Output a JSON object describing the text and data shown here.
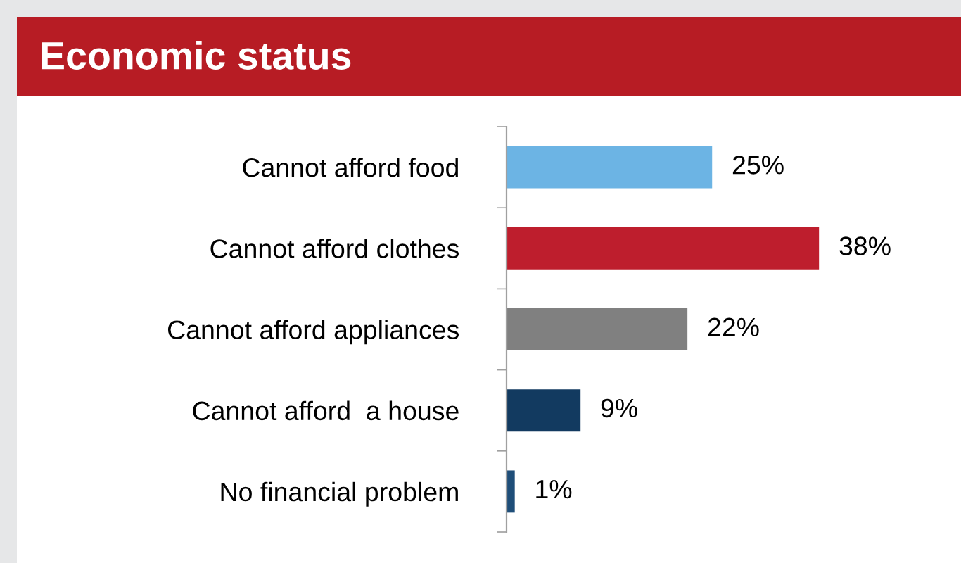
{
  "chart_data": {
    "type": "bar",
    "orientation": "horizontal",
    "title": "Economic status",
    "categories": [
      "Cannot afford food",
      "Cannot afford clothes",
      "Cannot afford appliances",
      "Cannot afford  a house",
      "No financial problem"
    ],
    "values": [
      25,
      38,
      22,
      9,
      1
    ],
    "colors": [
      "#6cb4e4",
      "#be1e2d",
      "#808080",
      "#123a60",
      "#1f4e79"
    ],
    "value_labels": [
      "25%",
      "38%",
      "22%",
      "9%",
      "1%"
    ],
    "grid": false,
    "legend": false
  }
}
